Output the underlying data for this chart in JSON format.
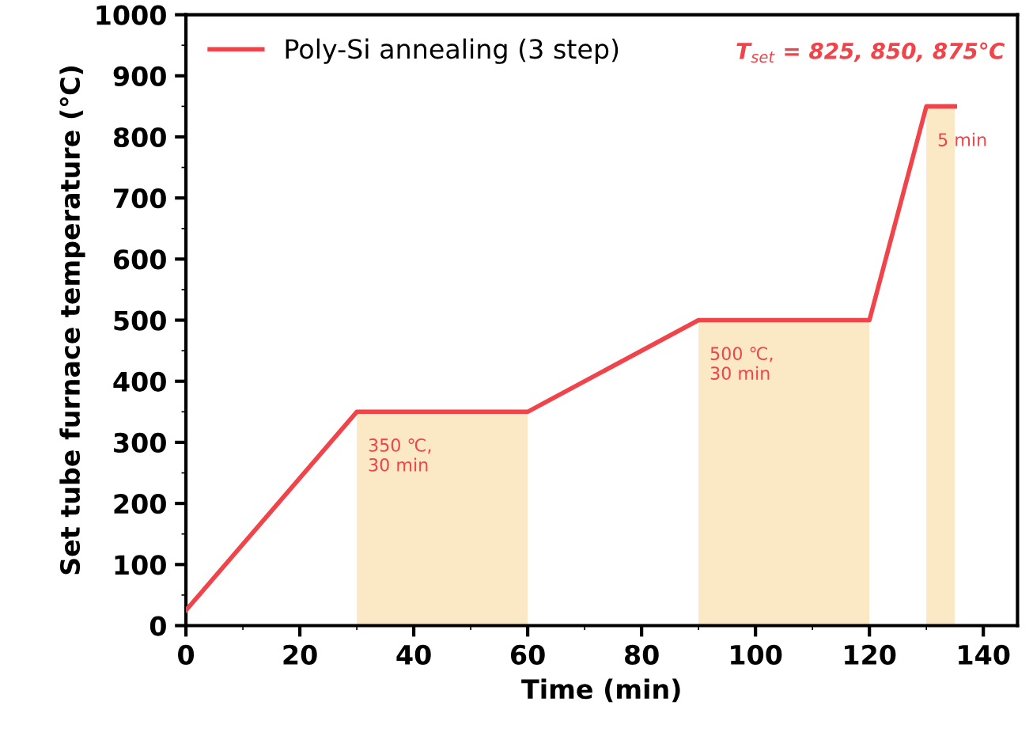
{
  "chart_data": {
    "type": "line",
    "xlabel": "Time (min)",
    "ylabel": "Set tube furnace temperature (℃)",
    "x": [
      0,
      30,
      60,
      90,
      120,
      130,
      135
    ],
    "series": [
      {
        "name": "Poly-Si annealing (3 step)",
        "color": "#f0434a",
        "values": [
          25,
          350,
          350,
          500,
          500,
          850,
          850
        ]
      }
    ],
    "xlim": [
      0,
      146
    ],
    "xticks": [
      0,
      20,
      40,
      60,
      80,
      100,
      120,
      140
    ],
    "ylim": [
      0,
      1000
    ],
    "yticks": [
      0,
      100,
      200,
      300,
      400,
      500,
      600,
      700,
      800,
      900,
      1000
    ],
    "bands": [
      {
        "axis": "x",
        "from": 30,
        "to": 60,
        "color": "#fbe8c4"
      },
      {
        "axis": "x",
        "from": 90,
        "to": 120,
        "color": "#fbe8c4"
      },
      {
        "axis": "x",
        "from": 130,
        "to": 135,
        "color": "#fbe8c4"
      }
    ],
    "annotations": [
      "350 ℃,\n30 min",
      "500 ℃,\n30 min",
      "5 min",
      "T$_{set}$ = 825, 850, 875℃"
    ],
    "legend": "top left",
    "grid": false,
    "marker": "none",
    "line_style": "solid"
  }
}
